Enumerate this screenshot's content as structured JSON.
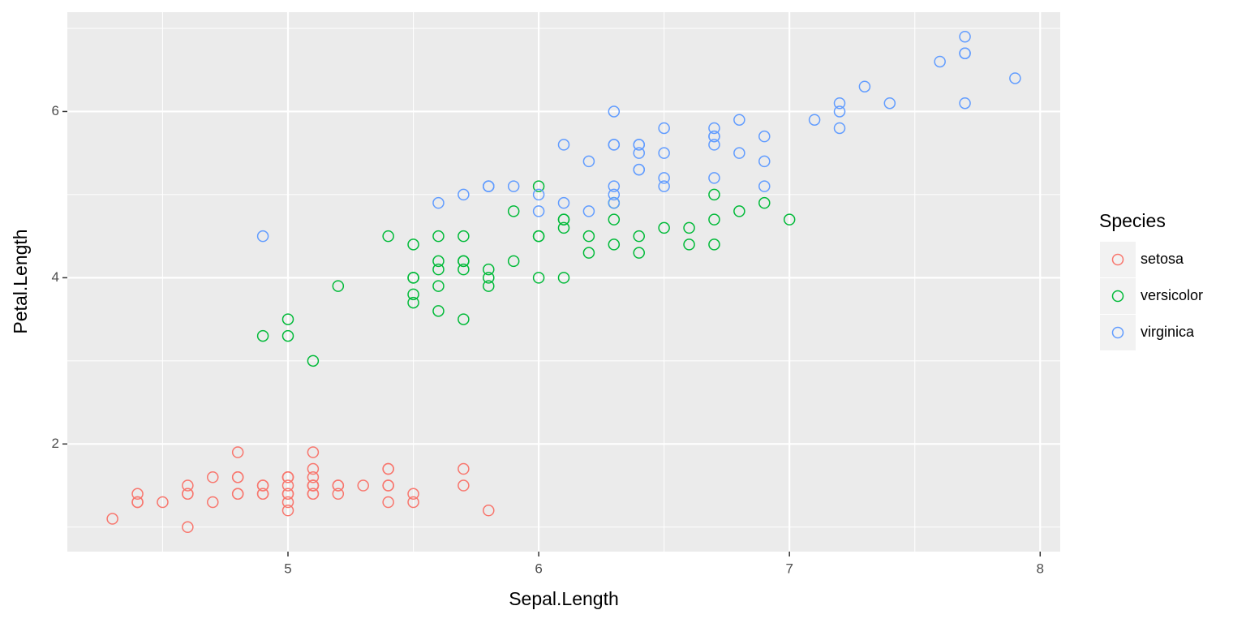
{
  "chart_data": {
    "type": "scatter",
    "x_label": "Sepal.Length",
    "y_label": "Petal.Length",
    "legend_title": "Species",
    "legend_position": "right",
    "xlim": [
      4.12,
      8.08
    ],
    "ylim": [
      0.705,
      7.195
    ],
    "xticks": [
      5,
      6,
      7,
      8
    ],
    "yticks": [
      2,
      4,
      6
    ],
    "x_minor_grid": [
      4.5,
      5.5,
      6.5,
      7.5
    ],
    "y_minor_grid": [
      1,
      3,
      5,
      7
    ],
    "grid": true,
    "series": [
      {
        "name": "setosa",
        "color": "#F8766D",
        "x": [
          5.1,
          4.9,
          4.7,
          4.6,
          5.0,
          5.4,
          4.6,
          5.0,
          4.4,
          4.9,
          5.4,
          4.8,
          4.8,
          4.3,
          5.8,
          5.7,
          5.4,
          5.1,
          5.7,
          5.1,
          5.4,
          5.1,
          4.6,
          5.1,
          4.8,
          5.0,
          5.0,
          5.2,
          5.2,
          4.7,
          4.8,
          5.4,
          5.2,
          5.5,
          4.9,
          5.0,
          5.5,
          4.9,
          4.4,
          5.1,
          5.0,
          4.5,
          4.4,
          5.0,
          5.1,
          4.8,
          5.1,
          4.6,
          5.3,
          5.0
        ],
        "values": [
          1.4,
          1.4,
          1.3,
          1.5,
          1.4,
          1.7,
          1.4,
          1.5,
          1.4,
          1.5,
          1.5,
          1.6,
          1.4,
          1.1,
          1.2,
          1.5,
          1.3,
          1.4,
          1.7,
          1.5,
          1.7,
          1.5,
          1.0,
          1.7,
          1.9,
          1.6,
          1.6,
          1.5,
          1.4,
          1.6,
          1.6,
          1.5,
          1.5,
          1.4,
          1.5,
          1.2,
          1.3,
          1.4,
          1.3,
          1.5,
          1.3,
          1.3,
          1.3,
          1.6,
          1.9,
          1.4,
          1.6,
          1.4,
          1.5,
          1.4
        ]
      },
      {
        "name": "versicolor",
        "color": "#00BA38",
        "x": [
          7.0,
          6.4,
          6.9,
          5.5,
          6.5,
          5.7,
          6.3,
          4.9,
          6.6,
          5.2,
          5.0,
          5.9,
          6.0,
          6.1,
          5.6,
          6.7,
          5.6,
          5.8,
          6.2,
          5.6,
          5.9,
          6.1,
          6.3,
          6.1,
          6.4,
          6.6,
          6.8,
          6.7,
          6.0,
          5.7,
          5.5,
          5.5,
          5.8,
          6.0,
          5.4,
          6.0,
          6.7,
          6.3,
          5.6,
          5.5,
          5.5,
          6.1,
          5.8,
          5.0,
          5.6,
          5.7,
          5.7,
          6.2,
          5.1,
          5.7
        ],
        "values": [
          4.7,
          4.5,
          4.9,
          4.0,
          4.6,
          4.5,
          4.7,
          3.3,
          4.6,
          3.9,
          3.5,
          4.2,
          4.0,
          4.7,
          3.6,
          4.4,
          4.5,
          4.1,
          4.5,
          3.9,
          4.8,
          4.0,
          4.9,
          4.7,
          4.3,
          4.4,
          4.8,
          5.0,
          4.5,
          3.5,
          3.8,
          3.7,
          3.9,
          5.1,
          4.5,
          4.5,
          4.7,
          4.4,
          4.1,
          4.0,
          4.4,
          4.6,
          4.0,
          3.3,
          4.2,
          4.2,
          4.2,
          4.3,
          3.0,
          4.1
        ]
      },
      {
        "name": "virginica",
        "color": "#619CFF",
        "x": [
          6.3,
          5.8,
          7.1,
          6.3,
          6.5,
          7.6,
          4.9,
          7.3,
          6.7,
          7.2,
          6.5,
          6.4,
          6.8,
          5.7,
          5.8,
          6.4,
          6.5,
          7.7,
          7.7,
          6.0,
          6.9,
          5.6,
          7.7,
          6.3,
          6.7,
          7.2,
          6.2,
          6.1,
          6.4,
          7.2,
          7.4,
          7.9,
          6.4,
          6.3,
          6.1,
          7.7,
          6.3,
          6.4,
          6.0,
          6.9,
          6.7,
          6.9,
          5.8,
          6.8,
          6.7,
          6.7,
          6.3,
          6.5,
          6.2,
          5.9
        ],
        "values": [
          6.0,
          5.1,
          5.9,
          5.6,
          5.8,
          6.6,
          4.5,
          6.3,
          5.8,
          6.1,
          5.1,
          5.3,
          5.5,
          5.0,
          5.1,
          5.3,
          5.5,
          6.7,
          6.9,
          5.0,
          5.7,
          4.9,
          6.7,
          4.9,
          5.7,
          6.0,
          4.8,
          4.9,
          5.6,
          5.8,
          6.1,
          6.4,
          5.6,
          5.1,
          5.6,
          6.1,
          5.6,
          5.5,
          4.8,
          5.4,
          5.6,
          5.1,
          5.1,
          5.9,
          5.7,
          5.2,
          5.0,
          5.2,
          5.4,
          5.1
        ]
      }
    ]
  }
}
